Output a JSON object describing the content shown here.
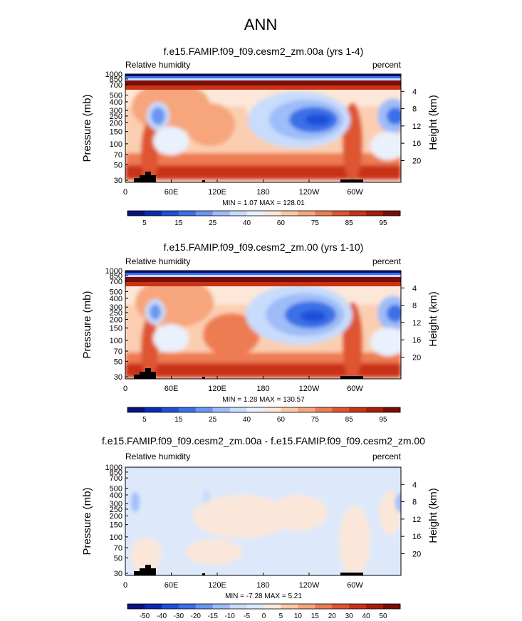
{
  "page_title": "ANN",
  "chart_data": [
    {
      "type": "heatmap",
      "title": "f.e15.FAMIP.f09_f09.cesm2_zm.00a (yrs 1-4)",
      "left_label": "Relative humidity",
      "right_label": "percent",
      "ylabel": "Pressure (mb)",
      "ylabel_right": "Height (km)",
      "x_ticks": [
        "0",
        "60E",
        "120E",
        "180",
        "120W",
        "60W"
      ],
      "y_ticks": [
        "1000",
        "850",
        "700",
        "500",
        "400",
        "300",
        "250",
        "200",
        "150",
        "100",
        "70",
        "50",
        "30"
      ],
      "y_right_ticks": [
        "4",
        "8",
        "12",
        "16",
        "20"
      ],
      "stats": "MIN = 1.07 MAX = 128.01",
      "colorbar": {
        "labels": [
          "5",
          "15",
          "25",
          "40",
          "60",
          "75",
          "85",
          "95"
        ],
        "colors": [
          "#08127d",
          "#0a2bb0",
          "#1e4fd8",
          "#3b6fe6",
          "#6a95f0",
          "#9dbcf8",
          "#c8dcfb",
          "#e9f1fc",
          "#fce7d8",
          "#fbc8a8",
          "#f6a57d",
          "#ee7b52",
          "#df5430",
          "#c83316",
          "#a51e0c",
          "#7a0d05"
        ]
      }
    },
    {
      "type": "heatmap",
      "title": "f.e15.FAMIP.f09_f09.cesm2_zm.00 (yrs 1-10)",
      "left_label": "Relative humidity",
      "right_label": "percent",
      "ylabel": "Pressure (mb)",
      "ylabel_right": "Height (km)",
      "x_ticks": [
        "0",
        "60E",
        "120E",
        "180",
        "120W",
        "60W"
      ],
      "y_ticks": [
        "1000",
        "850",
        "700",
        "500",
        "400",
        "300",
        "250",
        "200",
        "150",
        "100",
        "70",
        "50",
        "30"
      ],
      "y_right_ticks": [
        "4",
        "8",
        "12",
        "16",
        "20"
      ],
      "stats": "MIN = 1.28 MAX = 130.57",
      "colorbar": {
        "labels": [
          "5",
          "15",
          "25",
          "40",
          "60",
          "75",
          "85",
          "95"
        ],
        "colors": [
          "#08127d",
          "#0a2bb0",
          "#1e4fd8",
          "#3b6fe6",
          "#6a95f0",
          "#9dbcf8",
          "#c8dcfb",
          "#e9f1fc",
          "#fce7d8",
          "#fbc8a8",
          "#f6a57d",
          "#ee7b52",
          "#df5430",
          "#c83316",
          "#a51e0c",
          "#7a0d05"
        ]
      }
    },
    {
      "type": "heatmap",
      "title": "f.e15.FAMIP.f09_f09.cesm2_zm.00a - f.e15.FAMIP.f09_f09.cesm2_zm.00",
      "left_label": "Relative humidity",
      "right_label": "percent",
      "ylabel": "Pressure (mb)",
      "ylabel_right": "Height (km)",
      "x_ticks": [
        "0",
        "60E",
        "120E",
        "180",
        "120W",
        "60W"
      ],
      "y_ticks": [
        "1000",
        "850",
        "700",
        "500",
        "400",
        "300",
        "250",
        "200",
        "150",
        "100",
        "70",
        "50",
        "30"
      ],
      "y_right_ticks": [
        "4",
        "8",
        "12",
        "16",
        "20"
      ],
      "stats": "MIN = -7.28 MAX = 5.21",
      "colorbar": {
        "labels": [
          "-50",
          "-40",
          "-30",
          "-20",
          "-15",
          "-10",
          "-5",
          "0",
          "5",
          "10",
          "15",
          "20",
          "30",
          "40",
          "50"
        ],
        "colors": [
          "#08127d",
          "#0a2bb0",
          "#1e4fd8",
          "#3b6fe6",
          "#6a95f0",
          "#9dbcf8",
          "#c8dcfb",
          "#dde9fb",
          "#fce7d8",
          "#fbc8a8",
          "#f6a57d",
          "#ee7b52",
          "#df5430",
          "#c83316",
          "#a51e0c",
          "#7a0d05"
        ]
      }
    }
  ]
}
